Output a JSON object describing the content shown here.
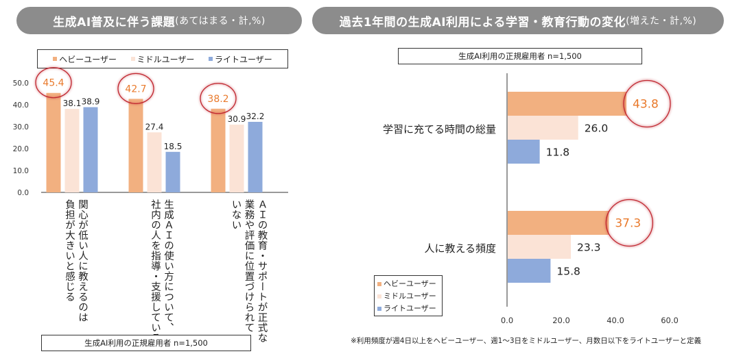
{
  "colors": {
    "heavy": "#f2b080",
    "middle": "#fbe3d6",
    "light": "#8eaadb",
    "highlight_text": "#e97a2c",
    "highlight_circle": "#c0262f",
    "pill_bg": "#8c8c8c"
  },
  "left_panel": {
    "title_main": "生成AI普及に伴う課題",
    "title_sub": "(あてはまる・計,%)",
    "sample": "生成AI利用の正規雇用者 n=1,500"
  },
  "right_panel": {
    "title_main": "過去1年間の生成AI利用による学習・教育行動の変化",
    "title_sub": "(増えた・計,%)",
    "sample": "生成AI利用の正規雇用者 n=1,500",
    "footnote": "※利用頻度が週4日以上をヘビーユーザー、週1～3日をミドルユーザー、月数日以下をライトユーザーと定義"
  },
  "legend": [
    {
      "name": "ヘビーユーザー",
      "key": "heavy"
    },
    {
      "name": "ミドルユーザー",
      "key": "middle"
    },
    {
      "name": "ライトユーザー",
      "key": "light"
    }
  ],
  "chart_data": [
    {
      "type": "bar",
      "orientation": "vertical",
      "title": "生成AI普及に伴う課題(あてはまる・計,%)",
      "categories": [
        "関心が低い人に教えるのは負担が大きいと感じる",
        "生成AIの使い方について、社内の人を指導・支援している",
        "AIの教育・サポートが正式な業務や評価に位置づけられていない"
      ],
      "category_lines": [
        [
          "関心が低い人に教えるのは",
          "負担が大きいと感じる"
        ],
        [
          "生成ＡＩの使い方について、",
          "社内の人を指導・支援している"
        ],
        [
          "ＡＩの教育・サポートが正式な",
          "業務や評価に位置づけられて",
          "いない"
        ]
      ],
      "series": [
        {
          "name": "ヘビーユーザー",
          "values": [
            45.4,
            42.7,
            38.2
          ]
        },
        {
          "name": "ミドルユーザー",
          "values": [
            38.1,
            27.4,
            30.9
          ]
        },
        {
          "name": "ライトユーザー",
          "values": [
            38.9,
            18.5,
            32.2
          ]
        }
      ],
      "highlighted_series": "ヘビーユーザー",
      "ylim": [
        0,
        50
      ],
      "yticks": [
        "0.0",
        "10.0",
        "20.0",
        "30.0",
        "40.0",
        "50.0"
      ],
      "xlabel": "",
      "ylabel": "",
      "grid": false,
      "legend": "top"
    },
    {
      "type": "bar",
      "orientation": "horizontal",
      "title": "過去1年間の生成AI利用による学習・教育行動の変化(増えた・計,%)",
      "categories": [
        "学習に充てる時間の総量",
        "人に教える頻度"
      ],
      "series": [
        {
          "name": "ヘビーユーザー",
          "values": [
            43.8,
            37.3
          ]
        },
        {
          "name": "ミドルユーザー",
          "values": [
            26.0,
            23.3
          ]
        },
        {
          "name": "ライトユーザー",
          "values": [
            11.8,
            15.8
          ]
        }
      ],
      "highlighted_series": "ヘビーユーザー",
      "xlim": [
        0,
        60
      ],
      "xticks": [
        "0.0",
        "20.0",
        "40.0",
        "60.0"
      ],
      "xlabel": "",
      "ylabel": "",
      "grid": false,
      "legend": "bottom-left"
    }
  ]
}
